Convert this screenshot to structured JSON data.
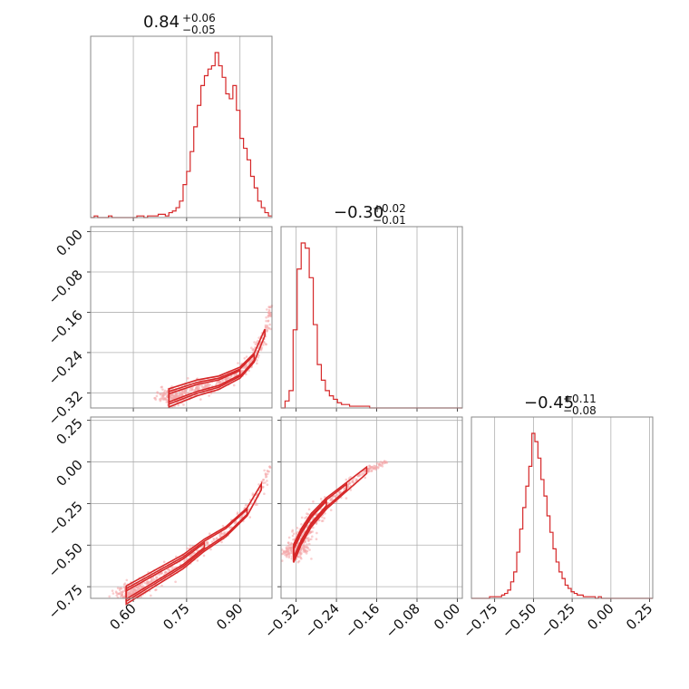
{
  "style": {
    "color": "#d62728",
    "scatter_color": "#f4a6a8",
    "grid": true
  },
  "chart_data": [
    {
      "type": "histogram",
      "panel": "x-marginal",
      "title": {
        "value": "0.84",
        "plus": "+0.06",
        "minus": "−0.05"
      },
      "xlim": [
        0.48,
        0.99
      ],
      "bin_edges_start": 0.48,
      "bin_width": 0.01,
      "counts": [
        0,
        1,
        0,
        0,
        0,
        1,
        0,
        0,
        0,
        0,
        0,
        0,
        0,
        1,
        1,
        0,
        1,
        1,
        1,
        2,
        2,
        1,
        3,
        4,
        6,
        10,
        20,
        28,
        40,
        55,
        68,
        80,
        86,
        90,
        92,
        100,
        92,
        85,
        75,
        72,
        80,
        65,
        48,
        42,
        35,
        25,
        18,
        10,
        6,
        3,
        1
      ],
      "xticks": [
        "0.60",
        "0.75",
        "0.90"
      ]
    },
    {
      "type": "histogram",
      "panel": "y-marginal",
      "title": {
        "value": "−0.30",
        "plus": "+0.02",
        "minus": "−0.01"
      },
      "xlim": [
        -0.35,
        0.01
      ],
      "bin_edges_start": -0.35,
      "bin_width": 0.008,
      "counts": [
        0,
        4,
        10,
        45,
        80,
        95,
        92,
        75,
        48,
        25,
        16,
        10,
        7,
        5,
        3,
        2,
        2,
        1,
        1,
        1,
        1,
        1,
        0,
        0,
        0,
        0,
        0,
        0,
        0,
        0,
        0,
        0,
        0,
        0,
        0,
        0,
        0,
        0,
        0,
        0,
        0,
        0,
        0,
        0,
        0
      ],
      "xticks": [
        "−0.32",
        "−0.24",
        "−0.16",
        "−0.08",
        "0.00"
      ]
    },
    {
      "type": "histogram",
      "panel": "z-marginal",
      "title": {
        "value": "−0.45",
        "plus": "+0.11",
        "minus": "−0.08"
      },
      "xlim": [
        -0.9,
        0.27
      ],
      "bin_edges_start": -0.9,
      "bin_width": 0.0195,
      "counts": [
        0,
        0,
        0,
        0,
        0,
        0,
        1,
        1,
        1,
        1,
        2,
        3,
        5,
        10,
        16,
        28,
        42,
        55,
        68,
        80,
        100,
        95,
        85,
        72,
        62,
        50,
        40,
        30,
        22,
        16,
        12,
        8,
        6,
        4,
        3,
        2,
        2,
        1,
        1,
        1,
        1,
        0,
        1,
        0,
        0,
        0,
        0,
        0,
        0,
        0,
        0,
        0,
        0,
        0,
        0,
        0,
        0,
        0,
        0,
        0
      ],
      "xticks": [
        "−0.75",
        "−0.50",
        "−0.25",
        "0.00",
        "0.25"
      ]
    },
    {
      "type": "scatter",
      "panel": "x-vs-y",
      "xlim": [
        0.48,
        0.99
      ],
      "ylim": [
        -0.35,
        0.01
      ],
      "ridge": [
        [
          0.7,
          -0.33
        ],
        [
          0.78,
          -0.31
        ],
        [
          0.84,
          -0.3
        ],
        [
          0.9,
          -0.28
        ],
        [
          0.94,
          -0.25
        ],
        [
          0.97,
          -0.2
        ],
        [
          0.99,
          -0.14
        ]
      ],
      "yticks": [
        "0.00",
        "−0.08",
        "−0.16",
        "−0.24",
        "−0.32"
      ]
    },
    {
      "type": "scatter",
      "panel": "x-vs-z",
      "xlim": [
        0.48,
        0.99
      ],
      "ylim": [
        -0.82,
        0.27
      ],
      "ridge": [
        [
          0.58,
          -0.8
        ],
        [
          0.66,
          -0.7
        ],
        [
          0.74,
          -0.6
        ],
        [
          0.8,
          -0.5
        ],
        [
          0.86,
          -0.42
        ],
        [
          0.92,
          -0.3
        ],
        [
          0.96,
          -0.15
        ],
        [
          0.99,
          0.0
        ]
      ],
      "xticks": [
        "0.60",
        "0.75",
        "0.90"
      ],
      "yticks": [
        "0.25",
        "0.00",
        "−0.25",
        "−0.50",
        "−0.75"
      ]
    },
    {
      "type": "scatter",
      "panel": "y-vs-z",
      "xlim": [
        -0.35,
        0.01
      ],
      "ylim": [
        -0.82,
        0.27
      ],
      "ridge": [
        [
          -0.325,
          -0.55
        ],
        [
          -0.31,
          -0.45
        ],
        [
          -0.29,
          -0.35
        ],
        [
          -0.26,
          -0.25
        ],
        [
          -0.22,
          -0.15
        ],
        [
          -0.18,
          -0.05
        ],
        [
          -0.14,
          0.0
        ]
      ],
      "xticks": [
        "−0.32",
        "−0.24",
        "−0.16",
        "−0.08",
        "0.00"
      ]
    }
  ]
}
